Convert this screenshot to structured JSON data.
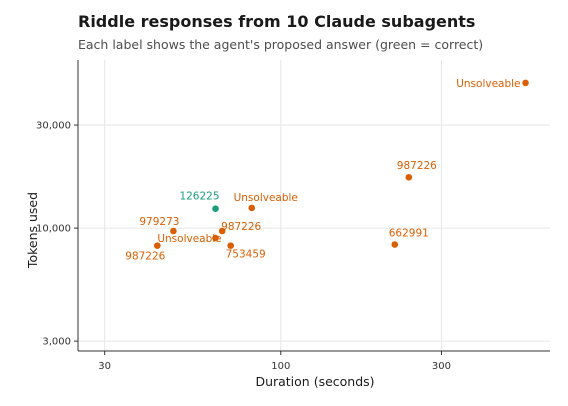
{
  "chart_data": {
    "type": "scatter",
    "title": "Riddle responses from 10 Claude subagents",
    "subtitle": "Each label shows the agent's proposed answer (green = correct)",
    "xlabel": "Duration (seconds)",
    "ylabel": "Tokens used",
    "x_scale": "log",
    "y_scale": "log",
    "xlim": [
      25,
      630
    ],
    "ylim": [
      2700,
      60000
    ],
    "x_ticks": [
      {
        "value": 30,
        "label": "30"
      },
      {
        "value": 100,
        "label": "100"
      },
      {
        "value": 300,
        "label": "300"
      }
    ],
    "y_ticks": [
      {
        "value": 3000,
        "label": "3,000"
      },
      {
        "value": 10000,
        "label": "10,000"
      },
      {
        "value": 30000,
        "label": "30,000"
      }
    ],
    "grid": true,
    "colors": {
      "correct": "#1b9e77",
      "incorrect": "#d95f02"
    },
    "points": [
      {
        "x": 533,
        "y": 47000,
        "label": "Unsolveable",
        "correct": false
      },
      {
        "x": 240,
        "y": 17200,
        "label": "987226",
        "correct": false
      },
      {
        "x": 64,
        "y": 12300,
        "label": "126225",
        "correct": true
      },
      {
        "x": 82,
        "y": 12400,
        "label": "Unsolveable",
        "correct": false
      },
      {
        "x": 48,
        "y": 9700,
        "label": "979273",
        "correct": false
      },
      {
        "x": 67,
        "y": 9700,
        "label": "987226",
        "correct": false
      },
      {
        "x": 64,
        "y": 9000,
        "label": "Unsolveable",
        "correct": false
      },
      {
        "x": 43,
        "y": 8300,
        "label": "987226",
        "correct": false
      },
      {
        "x": 71,
        "y": 8300,
        "label": "753459",
        "correct": false
      },
      {
        "x": 218,
        "y": 8400,
        "label": "662991",
        "correct": false
      }
    ]
  }
}
